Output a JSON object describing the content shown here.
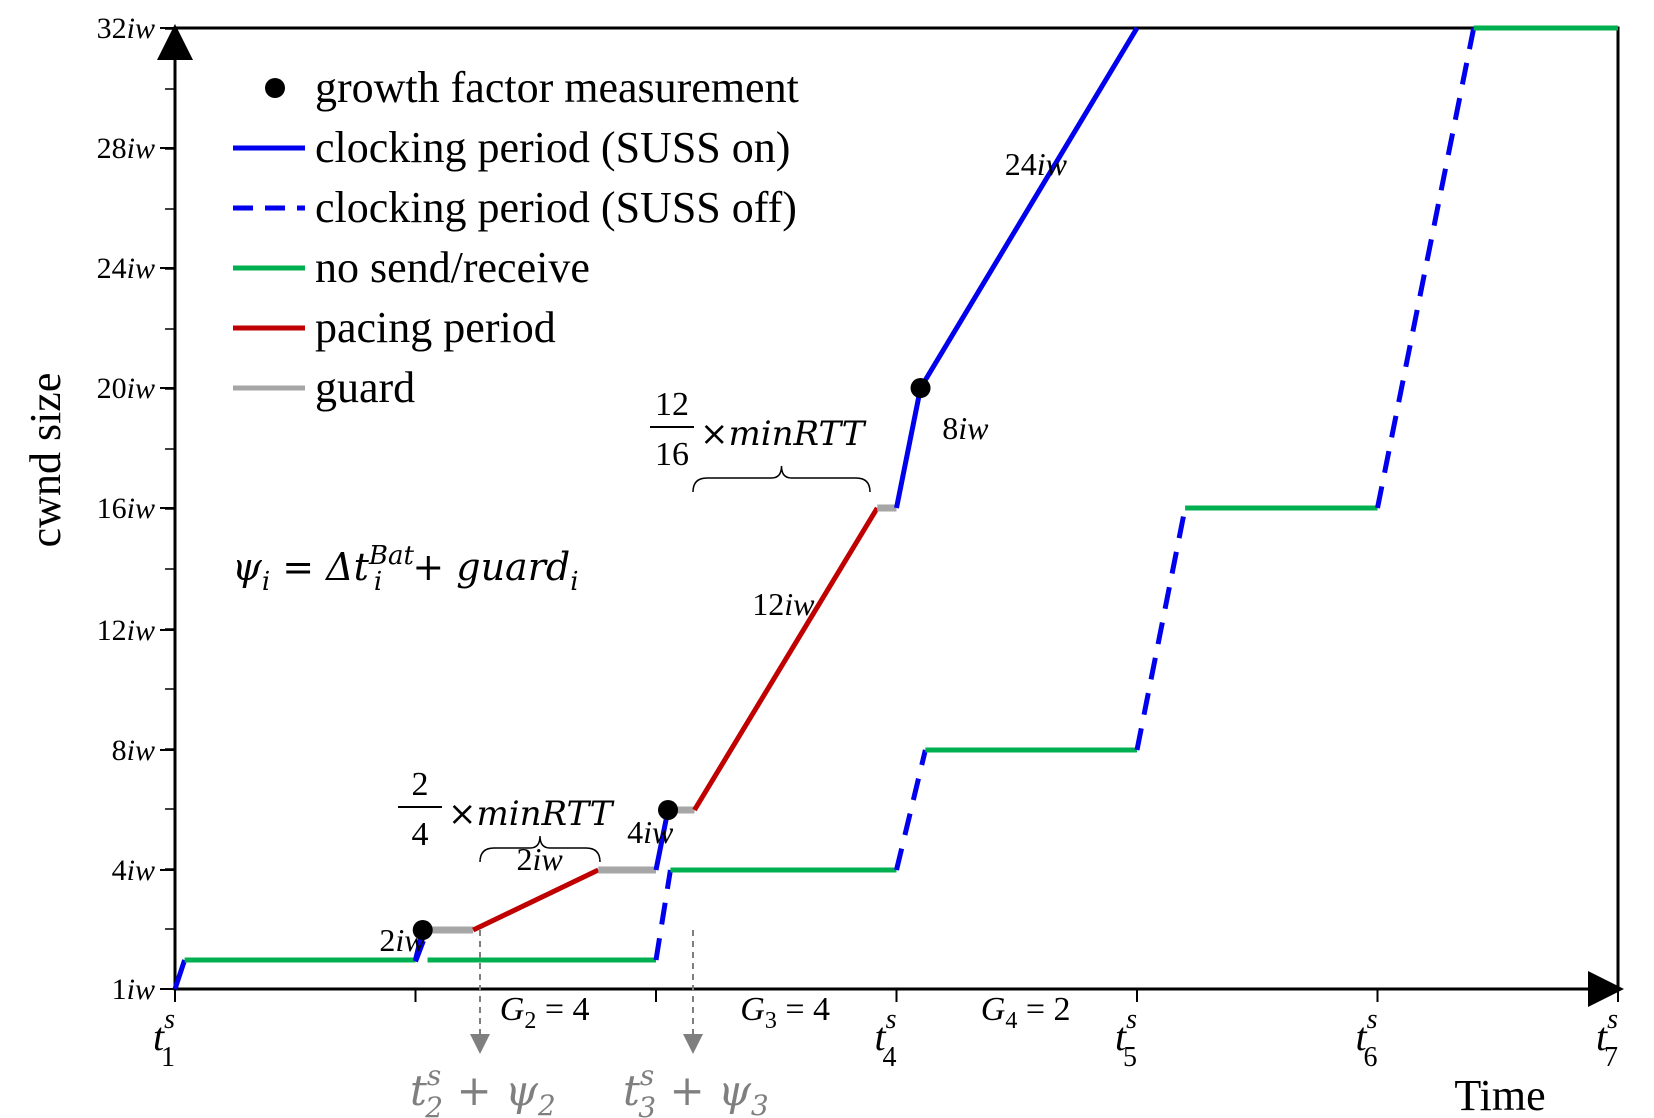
{
  "chart_data": {
    "type": "line",
    "xlabel": "Time",
    "ylabel": "cwnd size",
    "x_ticks": [
      {
        "x": 0,
        "label": "t",
        "sub": "1",
        "sup": "s"
      },
      {
        "x": 1,
        "label": "",
        "sub": "",
        "sup": ""
      },
      {
        "x": 2,
        "label": "",
        "sub": "",
        "sup": ""
      },
      {
        "x": 3,
        "label": "t",
        "sub": "4",
        "sup": "s"
      },
      {
        "x": 4,
        "label": "t",
        "sub": "5",
        "sup": "s"
      },
      {
        "x": 5,
        "label": "t",
        "sub": "6",
        "sup": "s"
      },
      {
        "x": 6,
        "label": "t",
        "sub": "7",
        "sup": "s"
      }
    ],
    "y_ticks": [
      {
        "y": 1,
        "label": "1iw"
      },
      {
        "y": 4,
        "label": "4iw"
      },
      {
        "y": 8,
        "label": "8iw"
      },
      {
        "y": 12,
        "label": "12iw"
      },
      {
        "y": 16,
        "label": "16iw"
      },
      {
        "y": 20,
        "label": "20iw"
      },
      {
        "y": 24,
        "label": "24iw"
      },
      {
        "y": 28,
        "label": "28iw"
      },
      {
        "y": 32,
        "label": "32iw"
      }
    ],
    "xlim": [
      0,
      6
    ],
    "ylim": [
      1,
      32
    ],
    "legend": {
      "placement": "top-left",
      "entries": [
        {
          "label": "growth factor measurement",
          "style": "dot",
          "color": "#000000"
        },
        {
          "label": "clocking period (SUSS on)",
          "style": "solid",
          "color": "#0000ee"
        },
        {
          "label": "clocking period (SUSS off)",
          "style": "dashed",
          "color": "#0000ee"
        },
        {
          "label": "no send/receive",
          "style": "solid",
          "color": "#00b050"
        },
        {
          "label": "pacing period",
          "style": "solid",
          "color": "#c00000"
        },
        {
          "label": "guard",
          "style": "solid",
          "color": "#a6a6a6"
        }
      ]
    },
    "segments": [
      {
        "style": "blue-solid",
        "points": [
          [
            0.0,
            1
          ],
          [
            0.04,
            2
          ]
        ]
      },
      {
        "style": "green",
        "points": [
          [
            0.04,
            2
          ],
          [
            1.0,
            2
          ]
        ]
      },
      {
        "style": "blue-solid",
        "points": [
          [
            1.0,
            2
          ],
          [
            1.03,
            3
          ]
        ]
      },
      {
        "style": "gray",
        "points": [
          [
            1.03,
            3
          ],
          [
            1.24,
            3
          ]
        ]
      },
      {
        "style": "red",
        "points": [
          [
            1.24,
            3
          ],
          [
            1.76,
            5
          ]
        ]
      },
      {
        "style": "gray",
        "points": [
          [
            1.76,
            5
          ],
          [
            2.0,
            5
          ]
        ]
      },
      {
        "style": "blue-solid",
        "points": [
          [
            2.0,
            5
          ],
          [
            2.05,
            7
          ]
        ]
      },
      {
        "style": "gray",
        "points": [
          [
            2.05,
            7
          ],
          [
            2.16,
            7
          ]
        ]
      },
      {
        "style": "red",
        "points": [
          [
            2.16,
            7
          ],
          [
            2.92,
            16
          ]
        ]
      },
      {
        "style": "gray",
        "points": [
          [
            2.92,
            16
          ],
          [
            3.0,
            16
          ]
        ]
      },
      {
        "style": "blue-solid",
        "points": [
          [
            3.0,
            16
          ],
          [
            3.1,
            20
          ]
        ]
      },
      {
        "style": "blue-solid",
        "points": [
          [
            3.1,
            20
          ],
          [
            4.0,
            32
          ]
        ]
      },
      {
        "style": "blue-dashed",
        "points": [
          [
            1.0,
            1.95
          ],
          [
            1.05,
            3
          ]
        ]
      },
      {
        "style": "green",
        "points": [
          [
            1.05,
            2
          ],
          [
            2.0,
            2
          ]
        ]
      },
      {
        "style": "blue-dashed",
        "points": [
          [
            2.0,
            2
          ],
          [
            2.06,
            4
          ]
        ]
      },
      {
        "style": "green",
        "points": [
          [
            2.06,
            4
          ],
          [
            3.0,
            4
          ]
        ]
      },
      {
        "style": "blue-dashed",
        "points": [
          [
            3.0,
            4
          ],
          [
            3.12,
            8
          ]
        ]
      },
      {
        "style": "green",
        "points": [
          [
            3.12,
            8
          ],
          [
            4.0,
            8
          ]
        ]
      },
      {
        "style": "blue-dashed",
        "points": [
          [
            4.0,
            8
          ],
          [
            4.2,
            16
          ]
        ]
      },
      {
        "style": "green",
        "points": [
          [
            4.2,
            16
          ],
          [
            5.0,
            16
          ]
        ]
      },
      {
        "style": "blue-dashed",
        "points": [
          [
            5.0,
            16
          ],
          [
            5.4,
            32
          ]
        ]
      },
      {
        "style": "green",
        "points": [
          [
            5.4,
            32
          ],
          [
            6.0,
            32
          ]
        ]
      }
    ],
    "measurement_points": [
      [
        1.03,
        3
      ],
      [
        2.05,
        7
      ],
      [
        3.1,
        20
      ]
    ],
    "segment_labels": [
      {
        "text": "2iw",
        "x": 0.85,
        "y": 2.3
      },
      {
        "text": "2iw",
        "x": 1.42,
        "y": 4.4
      },
      {
        "text": "4iw",
        "x": 1.88,
        "y": 5.9
      },
      {
        "text": "8iw",
        "x": 3.19,
        "y": 18.3
      },
      {
        "text": "12iw",
        "x": 2.4,
        "y": 12.5
      },
      {
        "text": "24iw",
        "x": 3.45,
        "y": 27.1
      }
    ],
    "gap_labels": [
      {
        "prefix": "G",
        "sub": "2",
        "value": " = 4",
        "x": 1.6,
        "y": 0.1
      },
      {
        "prefix": "G",
        "sub": "3",
        "value": " = 4",
        "x": 2.6,
        "y": 0.1
      },
      {
        "prefix": "G",
        "sub": "4",
        "value": " = 2",
        "x": 3.6,
        "y": 0.1
      }
    ],
    "annotations": {
      "formula": "ψ_i = Δt_i^Bat + guard_i",
      "brace1": {
        "num": "2",
        "den": "4",
        "suffix": "×minRTT"
      },
      "brace2": {
        "num": "12",
        "den": "16",
        "suffix": "×minRTT"
      },
      "marker1": {
        "t": "t",
        "sub": "2",
        "sup": "s",
        "plus": "+ ψ",
        "psi_sub": "2"
      },
      "marker2": {
        "t": "t",
        "sub": "3",
        "sup": "s",
        "plus": "+ ψ",
        "psi_sub": "3"
      }
    },
    "grid": false
  }
}
